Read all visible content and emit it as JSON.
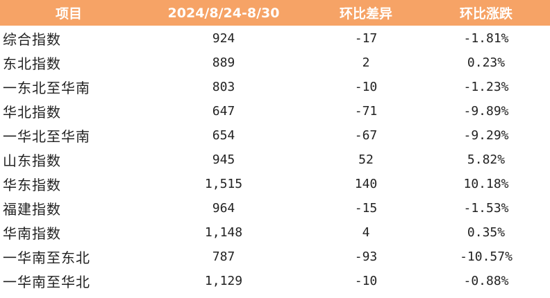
{
  "table": {
    "headers": [
      "项目",
      "2024/8/24-8/30",
      "环比差异",
      "环比涨跌"
    ],
    "rows": [
      {
        "name": "综合指数",
        "value": "924",
        "diff": "-17",
        "pct": "-1.81%"
      },
      {
        "name": "东北指数",
        "value": "889",
        "diff": "2",
        "pct": "0.23%"
      },
      {
        "name": "一东北至华南",
        "value": "803",
        "diff": "-10",
        "pct": "-1.23%"
      },
      {
        "name": "华北指数",
        "value": "647",
        "diff": "-71",
        "pct": "-9.89%"
      },
      {
        "name": "一华北至华南",
        "value": "654",
        "diff": "-67",
        "pct": "-9.29%"
      },
      {
        "name": "山东指数",
        "value": "945",
        "diff": "52",
        "pct": "5.82%"
      },
      {
        "name": "华东指数",
        "value": "1,515",
        "diff": "140",
        "pct": "10.18%"
      },
      {
        "name": "福建指数",
        "value": "964",
        "diff": "-15",
        "pct": "-1.53%"
      },
      {
        "name": "华南指数",
        "value": "1,148",
        "diff": "4",
        "pct": "0.35%"
      },
      {
        "name": "一华南至东北",
        "value": "787",
        "diff": "-93",
        "pct": "-10.57%"
      },
      {
        "name": "一华南至华北",
        "value": "1,129",
        "diff": "-10",
        "pct": "-0.88%"
      }
    ]
  },
  "colors": {
    "header_bg": "#f6a366",
    "header_text": "#ffffff"
  }
}
